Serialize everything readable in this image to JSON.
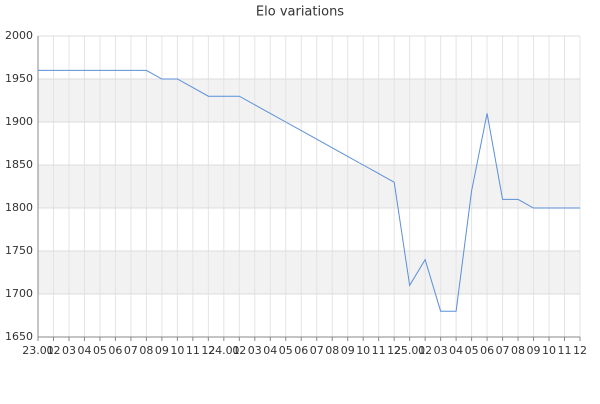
{
  "chart_data": {
    "type": "line",
    "title": "Elo variations",
    "categories": [
      "23.01",
      "02",
      "03",
      "04",
      "05",
      "06",
      "07",
      "08",
      "09",
      "10",
      "11",
      "12",
      "24.01",
      "02",
      "03",
      "04",
      "05",
      "06",
      "07",
      "08",
      "09",
      "10",
      "11",
      "12",
      "25.01",
      "02",
      "03",
      "04",
      "05",
      "06",
      "07",
      "08",
      "09",
      "10",
      "11",
      "12"
    ],
    "series": [
      {
        "name": "Elo",
        "color": "#5b8fd8",
        "values": [
          1960,
          1960,
          1960,
          1960,
          1960,
          1960,
          1960,
          1960,
          1950,
          1950,
          1940,
          1930,
          1930,
          1930,
          1920,
          1910,
          1900,
          1890,
          1880,
          1870,
          1860,
          1850,
          1840,
          1830,
          1710,
          1740,
          1680,
          1680,
          1820,
          1910,
          1810,
          1810,
          1800,
          1800,
          1800,
          1800
        ]
      }
    ],
    "ylim": [
      1650,
      2000
    ],
    "yticks": [
      1650,
      1700,
      1750,
      1800,
      1850,
      1900,
      1950,
      2000
    ],
    "grid": true
  }
}
